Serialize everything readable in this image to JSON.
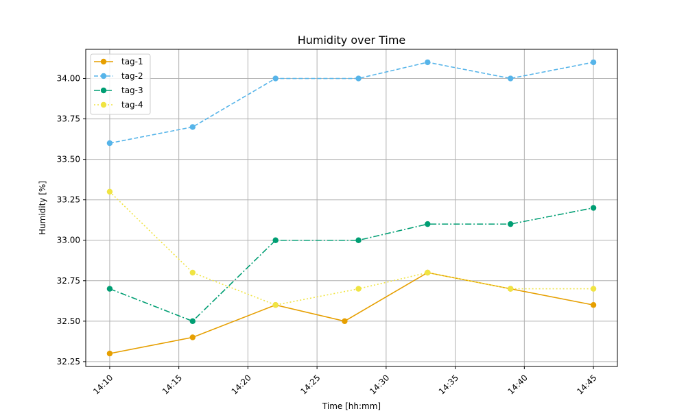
{
  "chart_data": {
    "type": "line",
    "title": "Humidity over Time",
    "xlabel": "Time [hh:mm]",
    "ylabel": "Humidity [%]",
    "x_ticks": [
      "14:10",
      "14:15",
      "14:20",
      "14:25",
      "14:30",
      "14:35",
      "14:40",
      "14:45"
    ],
    "y_ticks": [
      "32.25",
      "32.50",
      "32.75",
      "33.00",
      "33.25",
      "33.50",
      "33.75",
      "34.00"
    ],
    "xlim": [
      "14:08:16",
      "14:46:44"
    ],
    "ylim": [
      32.22,
      34.18
    ],
    "grid": true,
    "legend_position": "top-left",
    "series": [
      {
        "name": "tag-1",
        "color": "#E69F00",
        "line_style": "solid",
        "points": [
          {
            "x": "14:10",
            "y": 32.3
          },
          {
            "x": "14:16",
            "y": 32.4
          },
          {
            "x": "14:22",
            "y": 32.6
          },
          {
            "x": "14:27",
            "y": 32.5
          },
          {
            "x": "14:33",
            "y": 32.8
          },
          {
            "x": "14:39",
            "y": 32.7
          },
          {
            "x": "14:45",
            "y": 32.6
          }
        ]
      },
      {
        "name": "tag-2",
        "color": "#56B4E9",
        "line_style": "dashed",
        "points": [
          {
            "x": "14:10",
            "y": 33.6
          },
          {
            "x": "14:16",
            "y": 33.7
          },
          {
            "x": "14:22",
            "y": 34.0
          },
          {
            "x": "14:28",
            "y": 34.0
          },
          {
            "x": "14:33",
            "y": 34.1
          },
          {
            "x": "14:39",
            "y": 34.0
          },
          {
            "x": "14:45",
            "y": 34.1
          }
        ]
      },
      {
        "name": "tag-3",
        "color": "#009E73",
        "line_style": "dashdot",
        "points": [
          {
            "x": "14:10",
            "y": 32.7
          },
          {
            "x": "14:16",
            "y": 32.5
          },
          {
            "x": "14:22",
            "y": 33.0
          },
          {
            "x": "14:28",
            "y": 33.0
          },
          {
            "x": "14:33",
            "y": 33.1
          },
          {
            "x": "14:39",
            "y": 33.1
          },
          {
            "x": "14:45",
            "y": 33.2
          }
        ]
      },
      {
        "name": "tag-4",
        "color": "#F0E442",
        "line_style": "dotted",
        "points": [
          {
            "x": "14:10",
            "y": 33.3
          },
          {
            "x": "14:16",
            "y": 32.8
          },
          {
            "x": "14:22",
            "y": 32.6
          },
          {
            "x": "14:28",
            "y": 32.7
          },
          {
            "x": "14:33",
            "y": 32.8
          },
          {
            "x": "14:39",
            "y": 32.7
          },
          {
            "x": "14:45",
            "y": 32.7
          }
        ]
      }
    ]
  }
}
